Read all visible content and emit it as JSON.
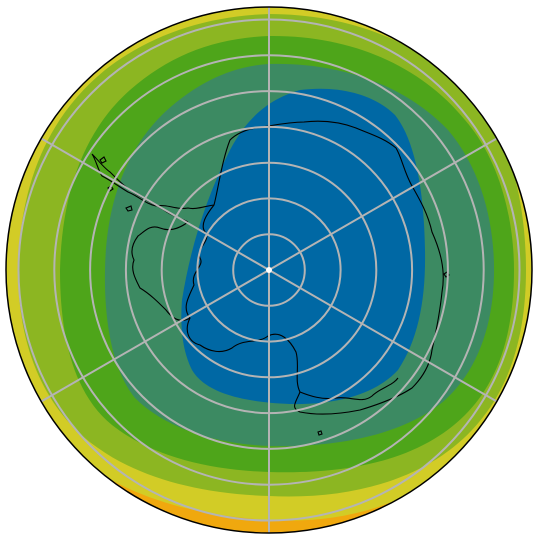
{
  "map": {
    "projection": "south-polar-stereographic",
    "boundary": "circle",
    "band_colors": [
      "#0068a4",
      "#3c8a62",
      "#4ea51a",
      "#8cb622",
      "#d2cc26",
      "#f0a80e"
    ],
    "coastline_color": "#000000",
    "graticule_color": "#b4b4b4",
    "pole_marker_color": "#ffffff",
    "border_color": "#000000",
    "meridians_deg": [
      0,
      60,
      120,
      180,
      240,
      300
    ],
    "parallels_count": 7
  }
}
